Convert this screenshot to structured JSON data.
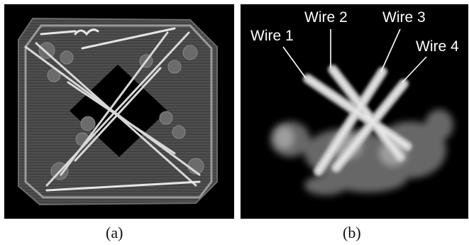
{
  "panel_a": {
    "caption": "(a)"
  },
  "panel_b": {
    "caption": "(b)",
    "wire_labels": [
      "Wire 1",
      "Wire 2",
      "Wire 3",
      "Wire 4"
    ]
  }
}
